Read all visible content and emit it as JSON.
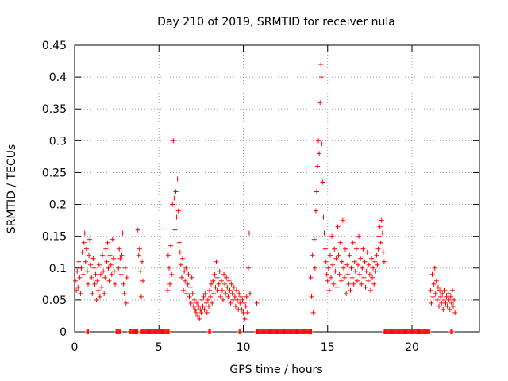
{
  "chart_data": {
    "type": "scatter",
    "title": "Day 210 of 2019, SRMTID for receiver nula",
    "xlabel": "GPS time / hours",
    "ylabel": "SRMTID / TECUs",
    "xlim": [
      0,
      24
    ],
    "ylim": [
      0,
      0.45
    ],
    "x_ticks": [
      0,
      5,
      10,
      15,
      20
    ],
    "x_tick_labels": [
      "0",
      "5",
      "10",
      "15",
      "20"
    ],
    "y_ticks": [
      0,
      0.05,
      0.1,
      0.15,
      0.2,
      0.25,
      0.3,
      0.35,
      0.4,
      0.45
    ],
    "y_tick_labels": [
      "0",
      "0.05",
      "0.1",
      "0.15",
      "0.2",
      "0.25",
      "0.3",
      "0.35",
      "0.4",
      "0.45"
    ],
    "grid": true,
    "marker": "plus",
    "colors": {
      "series": "#ff0000",
      "grid": "#a0a0a0",
      "axis": "#000000"
    },
    "series": [
      {
        "name": "SRMTID",
        "points": [
          [
            0.05,
            0.08
          ],
          [
            0.1,
            0.065
          ],
          [
            0.15,
            0.095
          ],
          [
            0.2,
            0.07
          ],
          [
            0.25,
            0.11
          ],
          [
            0.3,
            0.085
          ],
          [
            0.35,
            0.06
          ],
          [
            0.4,
            0.1
          ],
          [
            0.45,
            0.125
          ],
          [
            0.5,
            0.09
          ],
          [
            0.55,
            0.14
          ],
          [
            0.6,
            0.155
          ],
          [
            0.65,
            0.11
          ],
          [
            0.7,
            0.13
          ],
          [
            0.75,
            0.095
          ],
          [
            0.8,
            0.075
          ],
          [
            0.85,
            0.12
          ],
          [
            0.9,
            0.145
          ],
          [
            0.95,
            0.105
          ],
          [
            1.0,
            0.085
          ],
          [
            1.05,
            0.06
          ],
          [
            1.1,
            0.115
          ],
          [
            1.15,
            0.1
          ],
          [
            1.2,
            0.075
          ],
          [
            1.25,
            0.09
          ],
          [
            1.3,
            0.05
          ],
          [
            1.35,
            0.08
          ],
          [
            1.4,
            0.065
          ],
          [
            1.45,
            0.105
          ],
          [
            1.5,
            0.055
          ],
          [
            1.55,
            0.09
          ],
          [
            1.6,
            0.07
          ],
          [
            1.65,
            0.12
          ],
          [
            1.7,
            0.095
          ],
          [
            1.75,
            0.06
          ],
          [
            1.8,
            0.085
          ],
          [
            1.85,
            0.13
          ],
          [
            1.9,
            0.11
          ],
          [
            1.95,
            0.14
          ],
          [
            2.0,
            0.1
          ],
          [
            2.05,
            0.08
          ],
          [
            2.1,
            0.12
          ],
          [
            2.15,
            0.105
          ],
          [
            2.2,
            0.09
          ],
          [
            2.25,
            0.145
          ],
          [
            2.3,
            0.115
          ],
          [
            2.35,
            0.095
          ],
          [
            2.4,
            0.075
          ],
          [
            2.6,
            0.1
          ],
          [
            2.65,
            0.13
          ],
          [
            2.7,
            0.115
          ],
          [
            2.75,
            0.09
          ],
          [
            2.8,
            0.12
          ],
          [
            2.85,
            0.155
          ],
          [
            2.9,
            0.075
          ],
          [
            2.95,
            0.06
          ],
          [
            3.0,
            0.1
          ],
          [
            3.05,
            0.045
          ],
          [
            3.1,
            0.085
          ],
          [
            3.75,
            0.16
          ],
          [
            3.8,
            0.12
          ],
          [
            3.85,
            0.13
          ],
          [
            3.9,
            0.095
          ],
          [
            3.95,
            0.055
          ],
          [
            4.0,
            0.11
          ],
          [
            4.05,
            0.08
          ],
          [
            5.5,
            0.065
          ],
          [
            5.55,
            0.12
          ],
          [
            5.6,
            0.1
          ],
          [
            5.65,
            0.075
          ],
          [
            5.7,
            0.135
          ],
          [
            5.75,
            0.09
          ],
          [
            5.8,
            0.2
          ],
          [
            5.85,
            0.3
          ],
          [
            5.9,
            0.21
          ],
          [
            5.95,
            0.16
          ],
          [
            6.0,
            0.22
          ],
          [
            6.05,
            0.18
          ],
          [
            6.1,
            0.24
          ],
          [
            6.15,
            0.19
          ],
          [
            6.2,
            0.14
          ],
          [
            6.25,
            0.125
          ],
          [
            6.3,
            0.105
          ],
          [
            6.35,
            0.085
          ],
          [
            6.4,
            0.115
          ],
          [
            6.45,
            0.065
          ],
          [
            6.5,
            0.095
          ],
          [
            6.55,
            0.08
          ],
          [
            6.6,
            0.1
          ],
          [
            6.65,
            0.06
          ],
          [
            6.7,
            0.075
          ],
          [
            6.75,
            0.09
          ],
          [
            6.8,
            0.055
          ],
          [
            6.85,
            0.07
          ],
          [
            6.9,
            0.045
          ],
          [
            6.95,
            0.085
          ],
          [
            7.0,
            0.06
          ],
          [
            7.05,
            0.04
          ],
          [
            7.1,
            0.05
          ],
          [
            7.15,
            0.035
          ],
          [
            7.2,
            0.03
          ],
          [
            7.25,
            0.045
          ],
          [
            7.3,
            0.025
          ],
          [
            7.35,
            0.04
          ],
          [
            7.4,
            0.02
          ],
          [
            7.45,
            0.035
          ],
          [
            7.5,
            0.03
          ],
          [
            7.55,
            0.05
          ],
          [
            7.6,
            0.04
          ],
          [
            7.65,
            0.055
          ],
          [
            7.7,
            0.035
          ],
          [
            7.75,
            0.06
          ],
          [
            7.8,
            0.045
          ],
          [
            7.85,
            0.03
          ],
          [
            7.9,
            0.05
          ],
          [
            7.95,
            0.04
          ],
          [
            8.0,
            0.065
          ],
          [
            8.05,
            0.055
          ],
          [
            8.1,
            0.075
          ],
          [
            8.15,
            0.045
          ],
          [
            8.2,
            0.08
          ],
          [
            8.25,
            0.06
          ],
          [
            8.3,
            0.09
          ],
          [
            8.35,
            0.07
          ],
          [
            8.4,
            0.11
          ],
          [
            8.45,
            0.085
          ],
          [
            8.5,
            0.065
          ],
          [
            8.55,
            0.075
          ],
          [
            8.6,
            0.095
          ],
          [
            8.65,
            0.055
          ],
          [
            8.7,
            0.08
          ],
          [
            8.75,
            0.065
          ],
          [
            8.8,
            0.05
          ],
          [
            8.85,
            0.09
          ],
          [
            8.9,
            0.075
          ],
          [
            8.95,
            0.06
          ],
          [
            9.0,
            0.085
          ],
          [
            9.05,
            0.07
          ],
          [
            9.1,
            0.055
          ],
          [
            9.15,
            0.08
          ],
          [
            9.2,
            0.065
          ],
          [
            9.25,
            0.045
          ],
          [
            9.3,
            0.075
          ],
          [
            9.35,
            0.06
          ],
          [
            9.4,
            0.05
          ],
          [
            9.45,
            0.07
          ],
          [
            9.5,
            0.055
          ],
          [
            9.55,
            0.04
          ],
          [
            9.6,
            0.065
          ],
          [
            9.65,
            0.05
          ],
          [
            9.7,
            0.035
          ],
          [
            9.75,
            0.06
          ],
          [
            9.8,
            0.045
          ],
          [
            9.85,
            0.055
          ],
          [
            9.9,
            0.035
          ],
          [
            9.95,
            0.05
          ],
          [
            10.0,
            0.03
          ],
          [
            10.05,
            0.045
          ],
          [
            10.1,
            0.02
          ],
          [
            10.15,
            0.04
          ],
          [
            10.2,
            0.055
          ],
          [
            10.25,
            0.03
          ],
          [
            10.3,
            0.1
          ],
          [
            10.35,
            0.155
          ],
          [
            10.4,
            0.06
          ],
          [
            10.8,
            0.045
          ],
          [
            14.0,
            0.085
          ],
          [
            14.05,
            0.055
          ],
          [
            14.1,
            0.12
          ],
          [
            14.15,
            0.03
          ],
          [
            14.2,
            0.145
          ],
          [
            14.25,
            0.1
          ],
          [
            14.3,
            0.19
          ],
          [
            14.35,
            0.22
          ],
          [
            14.4,
            0.26
          ],
          [
            14.45,
            0.3
          ],
          [
            14.5,
            0.28
          ],
          [
            14.55,
            0.36
          ],
          [
            14.6,
            0.42
          ],
          [
            14.62,
            0.4
          ],
          [
            14.65,
            0.295
          ],
          [
            14.7,
            0.235
          ],
          [
            14.75,
            0.18
          ],
          [
            14.8,
            0.155
          ],
          [
            14.85,
            0.13
          ],
          [
            14.9,
            0.11
          ],
          [
            14.95,
            0.09
          ],
          [
            15.0,
            0.08
          ],
          [
            15.05,
            0.1
          ],
          [
            15.1,
            0.065
          ],
          [
            15.15,
            0.12
          ],
          [
            15.2,
            0.085
          ],
          [
            15.25,
            0.15
          ],
          [
            15.3,
            0.105
          ],
          [
            15.35,
            0.075
          ],
          [
            15.4,
            0.13
          ],
          [
            15.45,
            0.095
          ],
          [
            15.5,
            0.115
          ],
          [
            15.55,
            0.07
          ],
          [
            15.6,
            0.165
          ],
          [
            15.65,
            0.12
          ],
          [
            15.7,
            0.09
          ],
          [
            15.75,
            0.14
          ],
          [
            15.8,
            0.08
          ],
          [
            15.85,
            0.11
          ],
          [
            15.9,
            0.175
          ],
          [
            15.95,
            0.1
          ],
          [
            16.0,
            0.085
          ],
          [
            16.05,
            0.13
          ],
          [
            16.1,
            0.06
          ],
          [
            16.15,
            0.105
          ],
          [
            16.2,
            0.09
          ],
          [
            16.25,
            0.075
          ],
          [
            16.3,
            0.12
          ],
          [
            16.35,
            0.065
          ],
          [
            16.4,
            0.1
          ],
          [
            16.45,
            0.085
          ],
          [
            16.5,
            0.14
          ],
          [
            16.55,
            0.075
          ],
          [
            16.6,
            0.11
          ],
          [
            16.65,
            0.095
          ],
          [
            16.7,
            0.13
          ],
          [
            16.75,
            0.08
          ],
          [
            16.8,
            0.105
          ],
          [
            16.85,
            0.15
          ],
          [
            16.9,
            0.09
          ],
          [
            16.95,
            0.115
          ],
          [
            17.0,
            0.075
          ],
          [
            17.05,
            0.1
          ],
          [
            17.1,
            0.13
          ],
          [
            17.15,
            0.085
          ],
          [
            17.2,
            0.11
          ],
          [
            17.25,
            0.07
          ],
          [
            17.3,
            0.095
          ],
          [
            17.35,
            0.125
          ],
          [
            17.4,
            0.08
          ],
          [
            17.45,
            0.105
          ],
          [
            17.5,
            0.09
          ],
          [
            17.55,
            0.065
          ],
          [
            17.6,
            0.115
          ],
          [
            17.65,
            0.085
          ],
          [
            17.7,
            0.1
          ],
          [
            17.75,
            0.075
          ],
          [
            17.8,
            0.11
          ],
          [
            17.85,
            0.095
          ],
          [
            17.9,
            0.12
          ],
          [
            17.95,
            0.105
          ],
          [
            18.0,
            0.13
          ],
          [
            18.05,
            0.15
          ],
          [
            18.1,
            0.165
          ],
          [
            18.15,
            0.14
          ],
          [
            18.2,
            0.175
          ],
          [
            18.25,
            0.155
          ],
          [
            18.3,
            0.125
          ],
          [
            18.35,
            0.11
          ],
          [
            21.1,
            0.065
          ],
          [
            21.15,
            0.045
          ],
          [
            21.2,
            0.09
          ],
          [
            21.25,
            0.055
          ],
          [
            21.3,
            0.075
          ],
          [
            21.35,
            0.1
          ],
          [
            21.4,
            0.06
          ],
          [
            21.45,
            0.08
          ],
          [
            21.5,
            0.05
          ],
          [
            21.55,
            0.07
          ],
          [
            21.6,
            0.04
          ],
          [
            21.65,
            0.065
          ],
          [
            21.7,
            0.055
          ],
          [
            21.75,
            0.045
          ],
          [
            21.8,
            0.06
          ],
          [
            21.85,
            0.035
          ],
          [
            21.9,
            0.05
          ],
          [
            21.95,
            0.065
          ],
          [
            22.0,
            0.045
          ],
          [
            22.05,
            0.055
          ],
          [
            22.1,
            0.04
          ],
          [
            22.15,
            0.06
          ],
          [
            22.2,
            0.05
          ],
          [
            22.25,
            0.035
          ],
          [
            22.3,
            0.055
          ],
          [
            22.35,
            0.045
          ],
          [
            22.4,
            0.065
          ],
          [
            22.45,
            0.04
          ],
          [
            22.5,
            0.05
          ],
          [
            22.55,
            0.03
          ]
        ],
        "zero_ranges": [
          [
            0.72,
            0.85
          ],
          [
            2.45,
            2.72
          ],
          [
            3.25,
            3.75
          ],
          [
            3.95,
            5.6
          ],
          [
            7.95,
            8.05
          ],
          [
            9.75,
            9.85
          ],
          [
            10.75,
            14.05
          ],
          [
            18.35,
            21.05
          ],
          [
            22.3,
            22.4
          ]
        ]
      }
    ]
  }
}
